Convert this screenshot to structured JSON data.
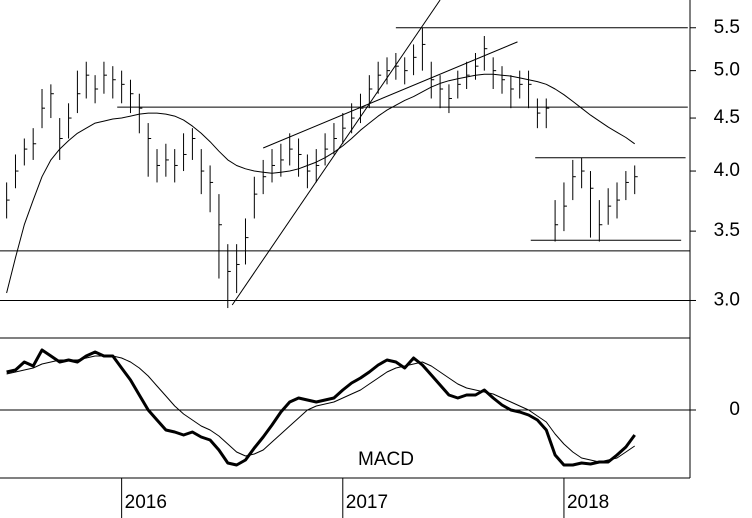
{
  "chart_data": [
    {
      "type": "hlc",
      "log_scale": true,
      "color": "#000000",
      "ma_color": "#000000",
      "xlim": [
        2015.45,
        2018.57
      ],
      "xticks": [
        2016,
        2017,
        2018
      ],
      "ylim": [
        2.76,
        5.85
      ],
      "yticks": [
        {
          "value": 3,
          "label": "3.0"
        },
        3.5,
        {
          "value": 4,
          "label": "4.0"
        },
        4.5,
        {
          "value": 5,
          "label": "5.0"
        },
        5.5
      ],
      "x": [
        2015.48,
        2015.52,
        2015.56,
        2015.6,
        2015.64,
        2015.68,
        2015.72,
        2015.76,
        2015.8,
        2015.84,
        2015.88,
        2015.92,
        2015.96,
        2016.0,
        2016.04,
        2016.08,
        2016.12,
        2016.16,
        2016.2,
        2016.24,
        2016.28,
        2016.32,
        2016.36,
        2016.4,
        2016.44,
        2016.48,
        2016.52,
        2016.56,
        2016.6,
        2016.64,
        2016.68,
        2016.72,
        2016.76,
        2016.8,
        2016.84,
        2016.88,
        2016.92,
        2016.96,
        2017.0,
        2017.04,
        2017.08,
        2017.12,
        2017.16,
        2017.2,
        2017.24,
        2017.28,
        2017.32,
        2017.36,
        2017.4,
        2017.44,
        2017.48,
        2017.52,
        2017.56,
        2017.6,
        2017.64,
        2017.68,
        2017.72,
        2017.76,
        2017.8,
        2017.84,
        2017.88,
        2017.92,
        2017.96,
        2018.0,
        2018.04,
        2018.08,
        2018.12,
        2018.16,
        2018.2,
        2018.24,
        2018.28,
        2018.32
      ],
      "high": [
        3.9,
        4.15,
        4.3,
        4.4,
        4.8,
        4.85,
        4.5,
        4.65,
        5.0,
        5.1,
        4.95,
        5.1,
        5.05,
        5.0,
        4.9,
        4.75,
        4.45,
        4.2,
        4.25,
        4.2,
        4.35,
        4.4,
        4.2,
        4.05,
        3.8,
        3.4,
        3.4,
        3.6,
        3.95,
        4.1,
        4.2,
        4.25,
        4.35,
        4.3,
        4.15,
        4.2,
        4.35,
        4.45,
        4.55,
        4.65,
        4.75,
        4.95,
        5.1,
        5.15,
        5.2,
        5.15,
        5.3,
        5.5,
        5.1,
        4.95,
        4.85,
        5.0,
        5.1,
        5.2,
        5.4,
        5.15,
        5.05,
        4.95,
        5.0,
        5.0,
        4.7,
        4.7,
        3.75,
        3.9,
        4.1,
        4.12,
        4.0,
        3.75,
        3.85,
        3.9,
        4.0,
        4.05
      ],
      "low": [
        3.6,
        3.85,
        4.05,
        4.1,
        4.4,
        4.5,
        4.1,
        4.3,
        4.55,
        4.7,
        4.65,
        4.75,
        4.7,
        4.65,
        4.55,
        4.35,
        3.95,
        3.9,
        3.95,
        3.9,
        4.0,
        4.1,
        3.8,
        3.65,
        3.15,
        2.95,
        3.05,
        3.25,
        3.6,
        3.8,
        3.9,
        3.95,
        4.05,
        3.95,
        3.85,
        3.9,
        4.05,
        4.15,
        4.25,
        4.35,
        4.45,
        4.6,
        4.75,
        4.85,
        4.9,
        4.85,
        4.95,
        5.0,
        4.7,
        4.6,
        4.55,
        4.7,
        4.8,
        4.9,
        5.0,
        4.8,
        4.75,
        4.6,
        4.7,
        4.6,
        4.4,
        4.4,
        3.42,
        3.5,
        3.75,
        3.85,
        3.45,
        3.42,
        3.55,
        3.6,
        3.75,
        3.8
      ],
      "close": [
        3.75,
        4.0,
        4.2,
        4.25,
        4.6,
        4.75,
        4.3,
        4.5,
        4.75,
        4.95,
        4.8,
        4.95,
        4.9,
        4.85,
        4.75,
        4.6,
        4.3,
        4.05,
        4.1,
        4.05,
        4.15,
        4.3,
        4.0,
        3.9,
        3.55,
        3.2,
        3.25,
        3.45,
        3.8,
        3.95,
        4.05,
        4.1,
        4.2,
        4.15,
        4.0,
        4.05,
        4.2,
        4.3,
        4.4,
        4.5,
        4.6,
        4.8,
        4.95,
        5.0,
        5.05,
        5.0,
        5.15,
        5.3,
        4.9,
        4.8,
        4.7,
        4.85,
        4.95,
        5.05,
        5.25,
        5.0,
        4.9,
        4.8,
        4.85,
        4.85,
        4.55,
        4.6,
        3.55,
        3.7,
        3.95,
        4.0,
        3.85,
        3.55,
        3.7,
        3.75,
        3.9,
        3.95
      ],
      "moving_average": [
        3.05,
        3.3,
        3.55,
        3.75,
        3.95,
        4.1,
        4.2,
        4.28,
        4.35,
        4.4,
        4.45,
        4.47,
        4.49,
        4.5,
        4.52,
        4.54,
        4.55,
        4.55,
        4.54,
        4.52,
        4.48,
        4.42,
        4.35,
        4.27,
        4.18,
        4.1,
        4.05,
        4.02,
        4.0,
        3.99,
        3.98,
        3.99,
        4.0,
        4.02,
        4.05,
        4.08,
        4.12,
        4.17,
        4.23,
        4.3,
        4.38,
        4.45,
        4.52,
        4.58,
        4.63,
        4.68,
        4.72,
        4.77,
        4.82,
        4.86,
        4.89,
        4.91,
        4.93,
        4.95,
        4.96,
        4.96,
        4.95,
        4.94,
        4.92,
        4.9,
        4.88,
        4.85,
        4.8,
        4.74,
        4.67,
        4.6,
        4.53,
        4.47,
        4.41,
        4.36,
        4.31,
        4.25
      ],
      "trend_lines": [
        {
          "x": [
            2016.5,
            2017.44
          ],
          "y": [
            2.97,
            5.85
          ]
        },
        {
          "x": [
            2016.64,
            2017.79
          ],
          "y": [
            4.21,
            5.33
          ]
        },
        {
          "x": [
            2017.24,
            2018.56
          ],
          "y": [
            5.5,
            5.5
          ]
        },
        {
          "x": [
            2015.98,
            2018.56
          ],
          "y": [
            4.61,
            4.61
          ]
        },
        {
          "x": [
            2015.45,
            2018.57
          ],
          "y": [
            3.35,
            3.35
          ]
        },
        {
          "x": [
            2015.45,
            2018.57
          ],
          "y": [
            3.0,
            3.0
          ]
        },
        {
          "x": [
            2017.87,
            2018.55
          ],
          "y": [
            4.12,
            4.12
          ]
        },
        {
          "x": [
            2017.85,
            2018.53
          ],
          "y": [
            3.43,
            3.43
          ]
        }
      ]
    },
    {
      "type": "line",
      "annotation": "MACD",
      "xlim": [
        2015.45,
        2018.57
      ],
      "ylim": [
        -0.34,
        0.36
      ],
      "yticks": [
        0
      ],
      "x": [
        2015.48,
        2015.52,
        2015.56,
        2015.6,
        2015.64,
        2015.68,
        2015.72,
        2015.76,
        2015.8,
        2015.84,
        2015.88,
        2015.92,
        2015.96,
        2016.0,
        2016.04,
        2016.08,
        2016.12,
        2016.16,
        2016.2,
        2016.24,
        2016.28,
        2016.32,
        2016.36,
        2016.4,
        2016.44,
        2016.48,
        2016.52,
        2016.56,
        2016.6,
        2016.64,
        2016.68,
        2016.72,
        2016.76,
        2016.8,
        2016.84,
        2016.88,
        2016.92,
        2016.96,
        2017.0,
        2017.04,
        2017.08,
        2017.12,
        2017.16,
        2017.2,
        2017.24,
        2017.28,
        2017.32,
        2017.36,
        2017.4,
        2017.44,
        2017.48,
        2017.52,
        2017.56,
        2017.6,
        2017.64,
        2017.68,
        2017.72,
        2017.76,
        2017.8,
        2017.84,
        2017.88,
        2017.92,
        2017.96,
        2018.0,
        2018.04,
        2018.08,
        2018.12,
        2018.16,
        2018.2,
        2018.24,
        2018.28,
        2018.32
      ],
      "series": [
        {
          "color": "#000000",
          "width": 3,
          "values": [
            0.19,
            0.2,
            0.24,
            0.22,
            0.3,
            0.27,
            0.24,
            0.25,
            0.24,
            0.27,
            0.29,
            0.27,
            0.27,
            0.21,
            0.15,
            0.075,
            0,
            -0.05,
            -0.1,
            -0.11,
            -0.125,
            -0.11,
            -0.135,
            -0.15,
            -0.2,
            -0.265,
            -0.275,
            -0.25,
            -0.19,
            -0.135,
            -0.075,
            -0.01,
            0.04,
            0.06,
            0.05,
            0.04,
            0.05,
            0.06,
            0.1,
            0.135,
            0.16,
            0.19,
            0.225,
            0.25,
            0.24,
            0.21,
            0.26,
            0.225,
            0.175,
            0.125,
            0.075,
            0.06,
            0.075,
            0.075,
            0.1,
            0.06,
            0.025,
            0,
            -0.01,
            -0.025,
            -0.05,
            -0.1,
            -0.225,
            -0.275,
            -0.275,
            -0.265,
            -0.27,
            -0.26,
            -0.26,
            -0.225,
            -0.185,
            -0.125
          ]
        },
        {
          "color": "#000000",
          "width": 1,
          "values": [
            0.18,
            0.19,
            0.2,
            0.21,
            0.23,
            0.24,
            0.25,
            0.25,
            0.25,
            0.26,
            0.27,
            0.27,
            0.27,
            0.26,
            0.24,
            0.21,
            0.17,
            0.12,
            0.07,
            0.02,
            -0.02,
            -0.05,
            -0.08,
            -0.1,
            -0.13,
            -0.17,
            -0.21,
            -0.23,
            -0.22,
            -0.2,
            -0.16,
            -0.12,
            -0.08,
            -0.04,
            0.0,
            0.02,
            0.03,
            0.04,
            0.06,
            0.08,
            0.1,
            0.13,
            0.16,
            0.19,
            0.21,
            0.22,
            0.23,
            0.24,
            0.22,
            0.19,
            0.16,
            0.13,
            0.11,
            0.1,
            0.09,
            0.08,
            0.06,
            0.04,
            0.02,
            0.0,
            -0.03,
            -0.06,
            -0.12,
            -0.17,
            -0.21,
            -0.24,
            -0.25,
            -0.26,
            -0.25,
            -0.24,
            -0.21,
            -0.18
          ]
        }
      ]
    }
  ]
}
